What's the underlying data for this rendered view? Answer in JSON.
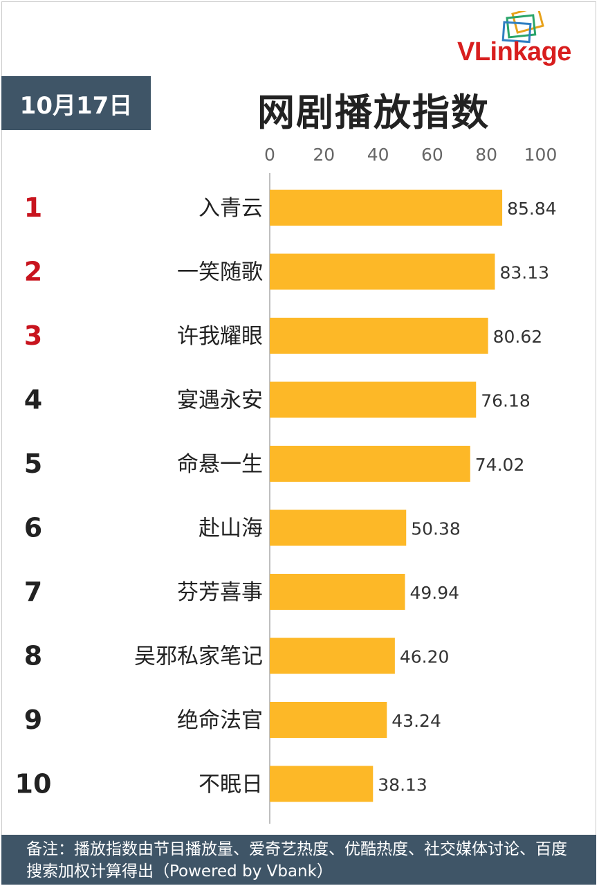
{
  "header": {
    "date": "10月17日",
    "title": "网剧播放指数",
    "logo_text": "VLinkage"
  },
  "chart_data": {
    "type": "bar",
    "orientation": "horizontal",
    "title": "网剧播放指数",
    "xlim": [
      0,
      100
    ],
    "ticks": [
      0,
      20,
      40,
      60,
      80,
      100
    ],
    "ranks": [
      "1",
      "2",
      "3",
      "4",
      "5",
      "6",
      "7",
      "8",
      "9",
      "10"
    ],
    "categories": [
      "入青云",
      "一笑随歌",
      "许我耀眼",
      "宴遇永安",
      "命悬一生",
      "赴山海",
      "芬芳喜事",
      "吴邪私家笔记",
      "绝命法官",
      "不眠日"
    ],
    "values": [
      85.84,
      83.13,
      80.62,
      76.18,
      74.02,
      50.38,
      49.94,
      46.2,
      43.24,
      38.13
    ],
    "value_labels": [
      "85.84",
      "83.13",
      "80.62",
      "76.18",
      "74.02",
      "50.38",
      "49.94",
      "46.20",
      "43.24",
      "38.13"
    ],
    "grid": false,
    "colors": {
      "bar": "#FDB827",
      "top_rank": "#c8141e",
      "rank": "#222222",
      "axis": "#bfbfbf",
      "tick_text": "#666666"
    }
  },
  "footer": {
    "note": "备注：播放指数由节目播放量、爱奇艺热度、优酷热度、社交媒体讨论、百度搜索加权计算得出（Powered by Vbank）"
  }
}
